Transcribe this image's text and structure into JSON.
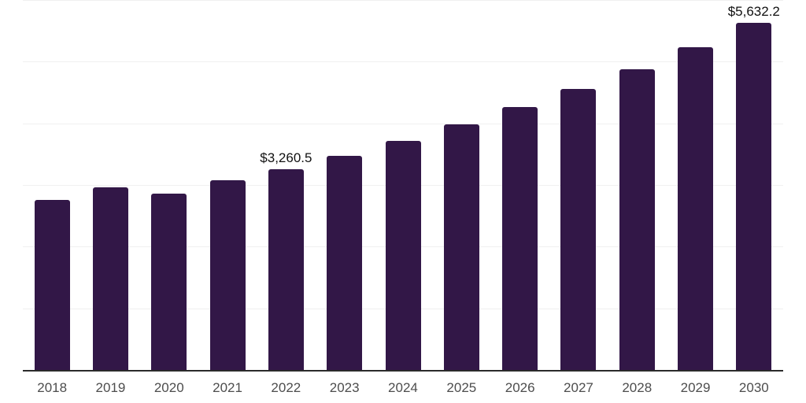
{
  "chart_data": {
    "type": "bar",
    "title": "",
    "xlabel": "",
    "ylabel": "",
    "categories": [
      "2018",
      "2019",
      "2020",
      "2021",
      "2022",
      "2023",
      "2024",
      "2025",
      "2026",
      "2027",
      "2028",
      "2029",
      "2030"
    ],
    "values": [
      2755,
      2965,
      2860,
      3075,
      3260.5,
      3470,
      3715,
      3980,
      4260,
      4560,
      4875,
      5240,
      5632.2
    ],
    "data_labels": [
      {
        "category": "2022",
        "text": "$3,260.5"
      },
      {
        "category": "2030",
        "text": "$5,632.2"
      }
    ],
    "ylim": [
      0,
      6000
    ],
    "grid": {
      "visible": true,
      "interval": 1000,
      "color": "#f0f0f0"
    },
    "legend": "none",
    "colors": {
      "bar": "#321747",
      "axis_line": "#2b2b2b",
      "tick_label": "#4d4d4d",
      "value_label": "#111111",
      "background": "#ffffff"
    }
  }
}
